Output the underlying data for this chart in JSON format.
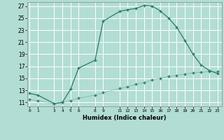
{
  "xlabel": "Humidex (Indice chaleur)",
  "bg_color": "#b2ddd4",
  "grid_color": "#c8e8e0",
  "line_color": "#2a7a6a",
  "curve1_x": [
    0,
    1,
    3,
    4,
    5,
    6,
    8,
    9,
    11,
    12,
    13,
    14,
    15,
    16,
    17,
    18,
    19,
    20,
    21,
    22,
    23
  ],
  "curve1_y": [
    12.5,
    12.2,
    10.8,
    11.0,
    13.2,
    16.7,
    18.0,
    24.5,
    26.1,
    26.4,
    26.6,
    27.1,
    27.0,
    26.2,
    25.0,
    23.5,
    21.3,
    19.0,
    17.2,
    16.3,
    15.8
  ],
  "curve2_x": [
    0,
    1,
    3,
    4,
    5,
    6,
    8,
    9,
    11,
    12,
    13,
    14,
    15,
    16,
    17,
    18,
    19,
    20,
    21,
    22,
    23
  ],
  "curve2_y": [
    11.5,
    11.3,
    10.8,
    11.0,
    11.3,
    11.7,
    12.2,
    12.6,
    13.3,
    13.6,
    14.0,
    14.3,
    14.7,
    15.0,
    15.3,
    15.5,
    15.7,
    15.9,
    16.0,
    16.1,
    16.1
  ],
  "xlim": [
    -0.3,
    23.5
  ],
  "ylim": [
    10.3,
    27.6
  ],
  "yticks": [
    11,
    13,
    15,
    17,
    19,
    21,
    23,
    25,
    27
  ],
  "xticks": [
    0,
    1,
    3,
    4,
    5,
    6,
    8,
    9,
    11,
    12,
    13,
    14,
    15,
    16,
    17,
    18,
    19,
    20,
    21,
    22,
    23
  ]
}
